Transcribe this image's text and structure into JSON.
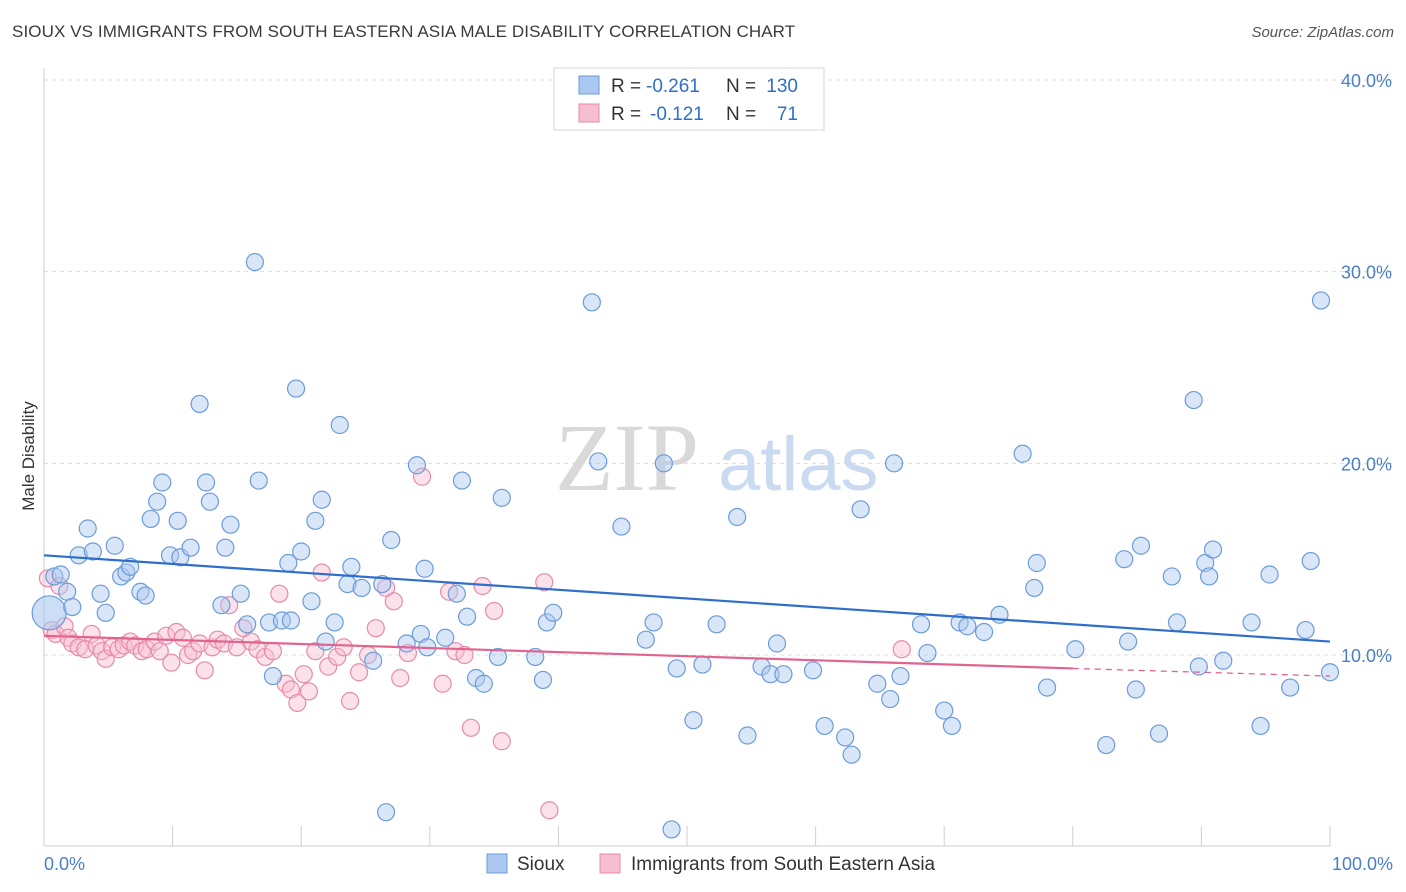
{
  "header": {
    "title": "SIOUX VS IMMIGRANTS FROM SOUTH EASTERN ASIA MALE DISABILITY CORRELATION CHART",
    "source": "Source: ZipAtlas.com"
  },
  "watermark": {
    "zip": "ZIP",
    "atlas": "atlas"
  },
  "colors": {
    "sioux_fill": "#aac8f0",
    "sioux_stroke": "#6b9bdb",
    "sioux_line": "#2f6fc9",
    "immig_fill": "#f6bfd0",
    "immig_stroke": "#e88aa8",
    "immig_line": "#e0648f",
    "tick_text": "#4a7fc9",
    "grid": "#dcdcdc"
  },
  "legend": {
    "rows": [
      {
        "r_label": "R = ",
        "r_value": "-0.261",
        "n_label": "N = ",
        "n_value": "130"
      },
      {
        "r_label": "R = ",
        "r_value": "-0.121",
        "n_label": "N = ",
        "n_value": "71"
      }
    ]
  },
  "chart_data": {
    "type": "scatter",
    "title": "SIOUX VS IMMIGRANTS FROM SOUTH EASTERN ASIA MALE DISABILITY CORRELATION CHART",
    "xlabel": "",
    "ylabel": "Male Disability",
    "xlim": [
      0,
      100
    ],
    "ylim": [
      0,
      41
    ],
    "x_tick_labels": [
      "0.0%",
      "100.0%"
    ],
    "y_ticks": [
      10,
      20,
      30,
      40
    ],
    "y_tick_labels": [
      "10.0%",
      "20.0%",
      "30.0%",
      "40.0%"
    ],
    "grid": true,
    "legend_position": "top-center",
    "series": [
      {
        "name": "Sioux",
        "regression": {
          "x0": 0,
          "y0": 15.2,
          "x1": 100,
          "y1": 10.7
        },
        "points": [
          [
            0.4,
            12.2
          ],
          [
            0.8,
            14.1
          ],
          [
            1.3,
            14.2
          ],
          [
            1.8,
            13.3
          ],
          [
            2.2,
            12.5
          ],
          [
            2.7,
            15.2
          ],
          [
            3.4,
            16.6
          ],
          [
            3.8,
            15.4
          ],
          [
            4.4,
            13.2
          ],
          [
            4.8,
            12.2
          ],
          [
            5.5,
            15.7
          ],
          [
            6.0,
            14.1
          ],
          [
            6.4,
            14.3
          ],
          [
            6.7,
            14.6
          ],
          [
            7.5,
            13.3
          ],
          [
            7.9,
            13.1
          ],
          [
            8.3,
            17.1
          ],
          [
            8.8,
            18.0
          ],
          [
            9.2,
            19.0
          ],
          [
            9.8,
            15.2
          ],
          [
            10.4,
            17.0
          ],
          [
            10.6,
            15.1
          ],
          [
            11.4,
            15.6
          ],
          [
            12.1,
            23.1
          ],
          [
            12.6,
            19.0
          ],
          [
            12.9,
            18.0
          ],
          [
            13.8,
            12.6
          ],
          [
            14.1,
            15.6
          ],
          [
            14.5,
            16.8
          ],
          [
            15.3,
            13.2
          ],
          [
            15.8,
            11.6
          ],
          [
            16.4,
            30.5
          ],
          [
            16.7,
            19.1
          ],
          [
            17.5,
            11.7
          ],
          [
            17.8,
            8.9
          ],
          [
            18.5,
            11.8
          ],
          [
            19.0,
            14.8
          ],
          [
            19.2,
            11.8
          ],
          [
            19.6,
            23.9
          ],
          [
            20.0,
            15.4
          ],
          [
            20.8,
            12.8
          ],
          [
            21.1,
            17.0
          ],
          [
            21.6,
            18.1
          ],
          [
            21.9,
            10.7
          ],
          [
            22.6,
            11.7
          ],
          [
            23.0,
            22.0
          ],
          [
            23.6,
            13.7
          ],
          [
            23.9,
            14.6
          ],
          [
            24.7,
            13.5
          ],
          [
            25.6,
            9.7
          ],
          [
            26.3,
            13.7
          ],
          [
            26.6,
            1.8
          ],
          [
            27.0,
            16.0
          ],
          [
            28.2,
            10.6
          ],
          [
            29.0,
            19.9
          ],
          [
            29.3,
            11.1
          ],
          [
            29.6,
            14.5
          ],
          [
            29.8,
            10.4
          ],
          [
            31.2,
            10.9
          ],
          [
            32.1,
            13.2
          ],
          [
            32.5,
            19.1
          ],
          [
            32.9,
            12.0
          ],
          [
            33.6,
            8.8
          ],
          [
            34.2,
            8.5
          ],
          [
            35.3,
            9.9
          ],
          [
            35.6,
            18.2
          ],
          [
            38.2,
            9.9
          ],
          [
            38.8,
            8.7
          ],
          [
            39.1,
            11.7
          ],
          [
            39.6,
            12.2
          ],
          [
            42.6,
            28.4
          ],
          [
            43.1,
            20.1
          ],
          [
            44.9,
            16.7
          ],
          [
            46.8,
            10.8
          ],
          [
            47.4,
            11.7
          ],
          [
            48.2,
            20.0
          ],
          [
            48.8,
            0.9
          ],
          [
            49.2,
            9.3
          ],
          [
            50.5,
            6.6
          ],
          [
            51.2,
            9.5
          ],
          [
            52.3,
            11.6
          ],
          [
            53.9,
            17.2
          ],
          [
            54.7,
            5.8
          ],
          [
            55.8,
            9.4
          ],
          [
            56.5,
            9.0
          ],
          [
            57.0,
            10.6
          ],
          [
            57.5,
            9.0
          ],
          [
            59.8,
            9.2
          ],
          [
            60.7,
            6.3
          ],
          [
            62.3,
            5.7
          ],
          [
            62.8,
            4.8
          ],
          [
            63.5,
            17.6
          ],
          [
            64.8,
            8.5
          ],
          [
            65.8,
            7.7
          ],
          [
            66.1,
            20.0
          ],
          [
            66.6,
            8.9
          ],
          [
            68.2,
            11.6
          ],
          [
            68.7,
            10.1
          ],
          [
            70.0,
            7.1
          ],
          [
            70.6,
            6.3
          ],
          [
            71.2,
            11.7
          ],
          [
            71.8,
            11.5
          ],
          [
            73.1,
            11.2
          ],
          [
            74.3,
            12.1
          ],
          [
            76.1,
            20.5
          ],
          [
            77.0,
            13.5
          ],
          [
            77.2,
            14.8
          ],
          [
            78.0,
            8.3
          ],
          [
            80.2,
            10.3
          ],
          [
            82.6,
            5.3
          ],
          [
            84.0,
            15.0
          ],
          [
            84.3,
            10.7
          ],
          [
            84.9,
            8.2
          ],
          [
            85.3,
            15.7
          ],
          [
            86.7,
            5.9
          ],
          [
            87.7,
            14.1
          ],
          [
            88.1,
            11.7
          ],
          [
            89.4,
            23.3
          ],
          [
            89.8,
            9.4
          ],
          [
            90.3,
            14.8
          ],
          [
            90.6,
            14.1
          ],
          [
            90.9,
            15.5
          ],
          [
            91.7,
            9.7
          ],
          [
            93.9,
            11.7
          ],
          [
            94.6,
            6.3
          ],
          [
            95.3,
            14.2
          ],
          [
            96.9,
            8.3
          ],
          [
            98.1,
            11.3
          ],
          [
            98.5,
            14.9
          ],
          [
            99.3,
            28.5
          ],
          [
            100.0,
            9.1
          ]
        ]
      },
      {
        "name": "Immigrants from South Eastern Asia",
        "regression": {
          "x0": 0,
          "y0": 11.0,
          "x1": 80,
          "y1": 9.3,
          "dash_x1": 100,
          "dash_y1": 8.9
        },
        "points": [
          [
            0.3,
            14.0
          ],
          [
            0.6,
            11.3
          ],
          [
            0.9,
            11.1
          ],
          [
            1.2,
            13.6
          ],
          [
            1.6,
            11.5
          ],
          [
            1.9,
            10.9
          ],
          [
            2.2,
            10.6
          ],
          [
            2.7,
            10.4
          ],
          [
            3.2,
            10.3
          ],
          [
            3.7,
            11.1
          ],
          [
            4.1,
            10.5
          ],
          [
            4.5,
            10.2
          ],
          [
            4.8,
            9.8
          ],
          [
            5.3,
            10.4
          ],
          [
            5.8,
            10.3
          ],
          [
            6.2,
            10.5
          ],
          [
            6.7,
            10.7
          ],
          [
            7.1,
            10.5
          ],
          [
            7.6,
            10.2
          ],
          [
            8.0,
            10.3
          ],
          [
            8.6,
            10.7
          ],
          [
            9.0,
            10.2
          ],
          [
            9.5,
            11.0
          ],
          [
            9.9,
            9.6
          ],
          [
            10.3,
            11.2
          ],
          [
            10.8,
            10.9
          ],
          [
            11.2,
            10.0
          ],
          [
            11.6,
            10.2
          ],
          [
            12.1,
            10.6
          ],
          [
            12.5,
            9.2
          ],
          [
            13.1,
            10.4
          ],
          [
            13.5,
            10.8
          ],
          [
            14.0,
            10.6
          ],
          [
            14.4,
            12.6
          ],
          [
            15.0,
            10.4
          ],
          [
            15.5,
            11.4
          ],
          [
            16.1,
            10.7
          ],
          [
            16.6,
            10.3
          ],
          [
            17.2,
            9.9
          ],
          [
            17.8,
            10.2
          ],
          [
            18.3,
            13.2
          ],
          [
            18.8,
            8.5
          ],
          [
            19.2,
            8.2
          ],
          [
            19.7,
            7.5
          ],
          [
            20.2,
            9.0
          ],
          [
            20.6,
            8.1
          ],
          [
            21.1,
            10.2
          ],
          [
            21.6,
            14.3
          ],
          [
            22.1,
            9.4
          ],
          [
            22.8,
            9.9
          ],
          [
            23.3,
            10.4
          ],
          [
            23.8,
            7.6
          ],
          [
            24.5,
            9.1
          ],
          [
            25.2,
            10.0
          ],
          [
            25.8,
            11.4
          ],
          [
            26.6,
            13.5
          ],
          [
            27.2,
            12.8
          ],
          [
            27.7,
            8.8
          ],
          [
            28.3,
            10.1
          ],
          [
            29.4,
            19.3
          ],
          [
            31.0,
            8.5
          ],
          [
            31.5,
            13.3
          ],
          [
            32.0,
            10.2
          ],
          [
            32.7,
            10.0
          ],
          [
            33.2,
            6.2
          ],
          [
            34.1,
            13.6
          ],
          [
            35.0,
            12.3
          ],
          [
            35.6,
            5.5
          ],
          [
            38.9,
            13.8
          ],
          [
            39.3,
            1.9
          ],
          [
            66.7,
            10.3
          ]
        ]
      }
    ]
  },
  "bottom_legend": {
    "items": [
      {
        "label": "Sioux"
      },
      {
        "label": "Immigrants from South Eastern Asia"
      }
    ]
  }
}
